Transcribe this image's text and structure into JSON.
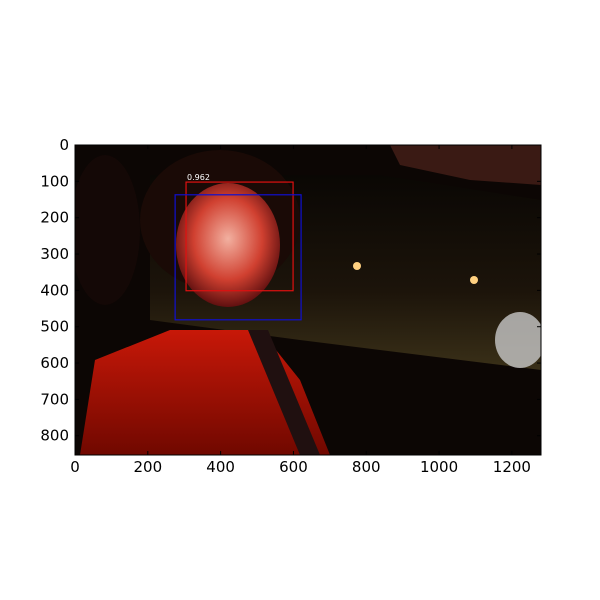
{
  "chart_data": {
    "type": "image",
    "xlim": [
      0,
      1280
    ],
    "ylim": [
      853,
      0
    ],
    "xticks": [
      0,
      200,
      400,
      600,
      800,
      1000,
      1200
    ],
    "yticks": [
      0,
      100,
      200,
      300,
      400,
      500,
      600,
      700,
      800
    ],
    "boxes": [
      {
        "color": "#e01010",
        "xmin": 305,
        "ymin": 102,
        "xmax": 599,
        "ymax": 401,
        "score": 0.962
      },
      {
        "color": "#1010d0",
        "xmin": 275,
        "ymin": 137,
        "xmax": 621,
        "ymax": 481
      }
    ]
  }
}
